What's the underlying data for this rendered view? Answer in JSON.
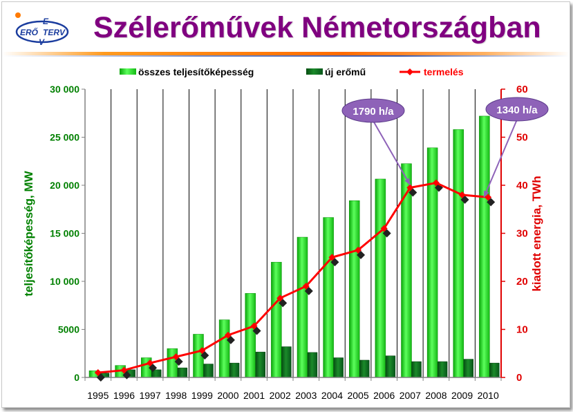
{
  "title": "Szélerőművek Németországban",
  "logo": {
    "letters": [
      "E",
      "ERŐ",
      "TERV",
      "V"
    ]
  },
  "colors": {
    "title": "#800080",
    "capacity": "#22cc22",
    "new_plants": "#0b6b1a",
    "production": "#ff0000",
    "left_axis": "#008000",
    "right_axis": "#e00000",
    "callout": "#8e62b8"
  },
  "chart_data": {
    "type": "bar",
    "categories": [
      "1995",
      "1996",
      "1997",
      "1998",
      "1999",
      "2000",
      "2001",
      "2002",
      "2003",
      "2004",
      "2005",
      "2006",
      "2007",
      "2008",
      "2009",
      "2010"
    ],
    "series": [
      {
        "name": "összes teljesítőképesség",
        "type": "bar",
        "axis": "left",
        "values": [
          700,
          1250,
          2050,
          3000,
          4500,
          6000,
          8750,
          12000,
          14600,
          16650,
          18400,
          20650,
          22250,
          23900,
          25800,
          27200
        ]
      },
      {
        "name": "új erőmű",
        "type": "bar",
        "axis": "left",
        "values": [
          450,
          800,
          800,
          1000,
          1400,
          1500,
          2650,
          3200,
          2600,
          2050,
          1800,
          2250,
          1650,
          1650,
          1900,
          1500
        ]
      },
      {
        "name": "termelés",
        "type": "line",
        "axis": "right",
        "values": [
          1.0,
          1.5,
          3.0,
          4.3,
          5.6,
          8.8,
          10.7,
          16.5,
          19.0,
          25.0,
          26.5,
          31.0,
          39.5,
          40.5,
          38.0,
          37.5
        ]
      }
    ],
    "ylabel": "teljesítőképesség, MW",
    "y2label": "kiadott energia, TWh",
    "ylim": [
      0,
      30000
    ],
    "y2lim": [
      0,
      60
    ],
    "yticks": [
      "0",
      "5000",
      "10 000",
      "15 000",
      "20 000",
      "25 000",
      "30 000"
    ],
    "y2ticks": [
      "0",
      "10",
      "20",
      "30",
      "40",
      "50",
      "60"
    ],
    "legend_position": "top",
    "grid": "vertical",
    "annotations": [
      {
        "text": "1790  h/a",
        "year": "2007"
      },
      {
        "text": "1340  h/a",
        "year": "2010"
      }
    ]
  }
}
